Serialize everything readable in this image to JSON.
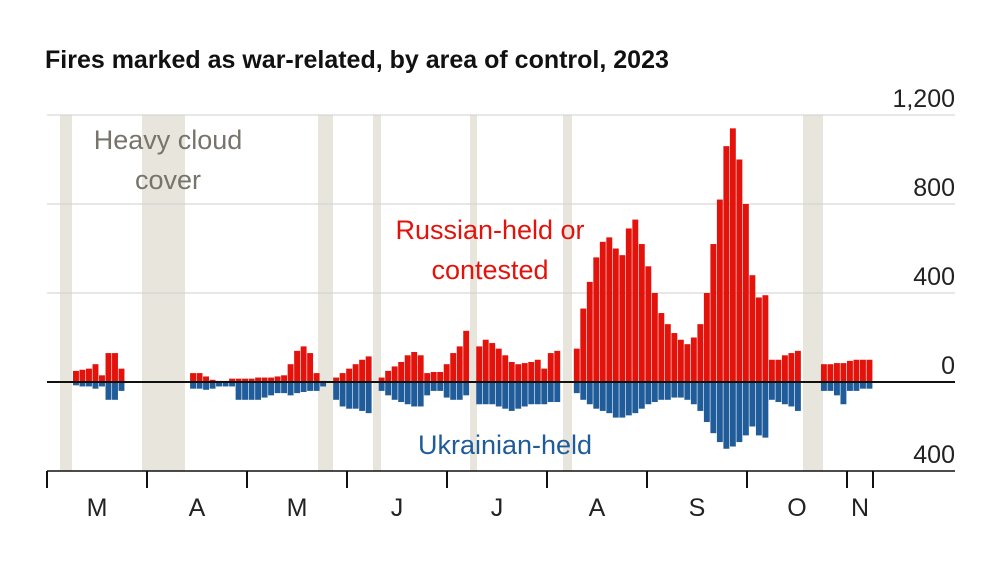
{
  "chart_data": {
    "type": "bar",
    "title": "Fires marked as war-related, by area of control, 2023",
    "annotations": [
      "Heavy cloud cover"
    ],
    "months": [
      "M",
      "A",
      "M",
      "J",
      "J",
      "A",
      "S",
      "O",
      "N"
    ],
    "ylim": [
      -400,
      1200
    ],
    "yticks": [
      {
        "value": 1200,
        "label": "1,200"
      },
      800,
      400,
      0,
      {
        "value": -400,
        "label": "400"
      }
    ],
    "grid": true,
    "series": [
      {
        "name": "Russian-held or contested",
        "color": "#e3120b",
        "values": [
          null,
          null,
          null,
          null,
          50,
          55,
          60,
          80,
          30,
          130,
          130,
          60,
          null,
          null,
          null,
          null,
          null,
          null,
          null,
          null,
          null,
          null,
          40,
          40,
          25,
          10,
          5,
          5,
          15,
          15,
          15,
          15,
          20,
          20,
          20,
          25,
          30,
          80,
          140,
          160,
          130,
          40,
          5,
          null,
          20,
          40,
          60,
          80,
          100,
          115,
          null,
          20,
          50,
          70,
          90,
          120,
          135,
          120,
          40,
          45,
          45,
          80,
          130,
          160,
          230,
          null,
          160,
          190,
          175,
          150,
          120,
          90,
          80,
          85,
          90,
          100,
          60,
          130,
          140,
          null,
          null,
          150,
          330,
          450,
          560,
          630,
          650,
          600,
          570,
          690,
          730,
          620,
          520,
          400,
          310,
          260,
          220,
          190,
          170,
          200,
          260,
          400,
          620,
          820,
          1060,
          1140,
          1000,
          800,
          480,
          380,
          390,
          100,
          100,
          120,
          130,
          140,
          null,
          null,
          null,
          80,
          80,
          85,
          85,
          95,
          100,
          100,
          100
        ]
      },
      {
        "name": "Ukrainian-held",
        "color": "#1f5c99",
        "values": [
          null,
          null,
          null,
          null,
          -15,
          -20,
          -20,
          -30,
          -20,
          -80,
          -80,
          -40,
          null,
          null,
          null,
          null,
          null,
          null,
          null,
          null,
          null,
          null,
          -30,
          -30,
          -35,
          -30,
          -20,
          -20,
          -20,
          -80,
          -80,
          -80,
          -80,
          -70,
          -60,
          -50,
          -50,
          -60,
          -50,
          -45,
          -40,
          -40,
          -20,
          null,
          -80,
          -110,
          -120,
          -120,
          -130,
          -140,
          null,
          -40,
          -60,
          -80,
          -90,
          -100,
          -110,
          -110,
          -60,
          -40,
          -40,
          -70,
          -80,
          -80,
          -60,
          null,
          -100,
          -100,
          -100,
          -110,
          -120,
          -130,
          -120,
          -110,
          -100,
          -100,
          -100,
          -90,
          -90,
          null,
          null,
          -50,
          -80,
          -100,
          -120,
          -130,
          -140,
          -160,
          -160,
          -150,
          -140,
          -120,
          -100,
          -90,
          -80,
          -80,
          -70,
          -70,
          -80,
          -100,
          -130,
          -180,
          -230,
          -270,
          -300,
          -290,
          -270,
          -240,
          -200,
          -240,
          -250,
          -80,
          -90,
          -100,
          -110,
          -130,
          null,
          null,
          null,
          -40,
          -40,
          -60,
          -100,
          -40,
          -40,
          -30,
          -30
        ]
      }
    ]
  }
}
